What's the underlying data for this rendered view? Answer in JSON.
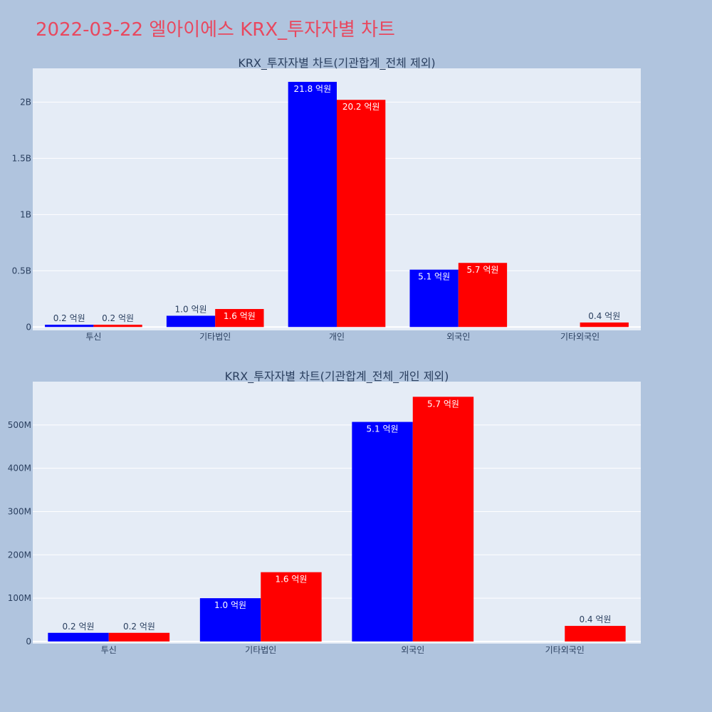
{
  "title": "2022-03-22 엘아이에스 KRX_투자자별 차트",
  "colors": {
    "page_bg": "#b0c4de",
    "plot_bg": "#e5ecf6",
    "title": "#e8485f",
    "sell": "#0000ff",
    "buy": "#ff0000",
    "grid": "#ffffff"
  },
  "chart_data": [
    {
      "type": "bar",
      "title": "KRX_투자자별 차트(기관합계_전체 제외)",
      "categories": [
        "투신",
        "기타법인",
        "개인",
        "외국인",
        "기타외국인"
      ],
      "series": [
        {
          "color": "#0000ff",
          "values": [
            20000000,
            100000000,
            2180000000,
            510000000,
            0
          ],
          "labels": [
            "0.2 억원",
            "1.0 억원",
            "21.8 억원",
            "5.1 억원",
            ""
          ]
        },
        {
          "color": "#ff0000",
          "values": [
            20000000,
            160000000,
            2020000000,
            570000000,
            40000000
          ],
          "labels": [
            "0.2 억원",
            "1.6 억원",
            "20.2 억원",
            "5.7 억원",
            "0.4 억원"
          ]
        }
      ],
      "ylim": [
        -30000000,
        2300000000
      ],
      "yticks": [
        0,
        500000000,
        1000000000,
        1500000000,
        2000000000
      ],
      "ytick_labels": [
        "0",
        "0.5B",
        "1B",
        "1.5B",
        "2B"
      ],
      "grid": true
    },
    {
      "type": "bar",
      "title": "KRX_투자자별 차트(기관합계_전체_개인 제외)",
      "categories": [
        "투신",
        "기타법인",
        "외국인",
        "기타외국인"
      ],
      "series": [
        {
          "color": "#0000ff",
          "values": [
            20000000,
            100000000,
            507000000,
            0
          ],
          "labels": [
            "0.2 억원",
            "1.0 억원",
            "5.1 억원",
            ""
          ]
        },
        {
          "color": "#ff0000",
          "values": [
            20000000,
            160000000,
            565000000,
            36000000
          ],
          "labels": [
            "0.2 억원",
            "1.6 억원",
            "5.7 억원",
            "0.4 억원"
          ]
        }
      ],
      "ylim": [
        -5000000,
        600000000
      ],
      "yticks": [
        0,
        100000000,
        200000000,
        300000000,
        400000000,
        500000000
      ],
      "ytick_labels": [
        "0",
        "100M",
        "200M",
        "300M",
        "400M",
        "500M"
      ],
      "grid": true
    }
  ]
}
